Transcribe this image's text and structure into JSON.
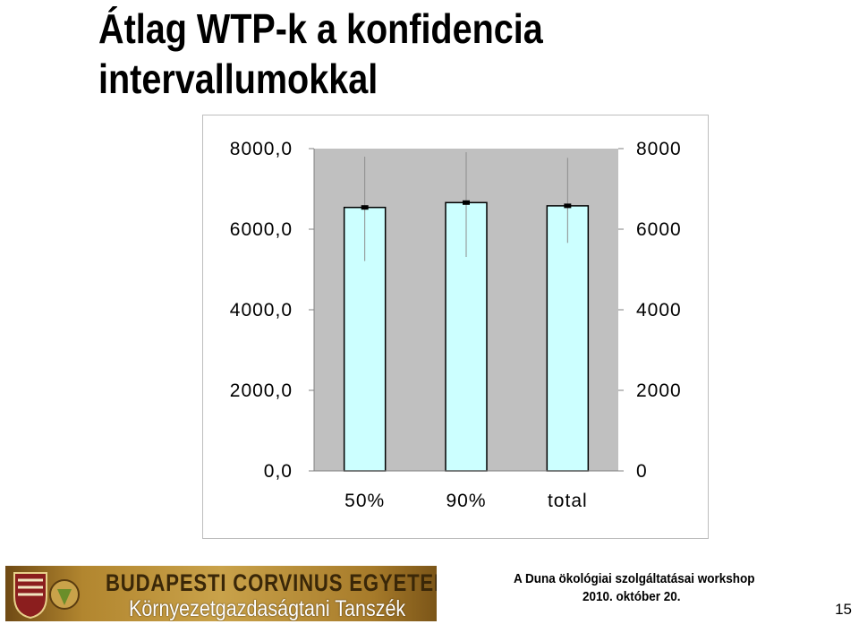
{
  "slide": {
    "title": "Átlag WTP-k a konfidencia intervallumokkal",
    "page_number": "15"
  },
  "footer": {
    "university": "BUDAPESTI CORVINUS EGYETEM",
    "department": "Környezetgazdaságtani Tanszék",
    "workshop": "A Duna ökológiai szolgáltatásai workshop",
    "date": "2010. október 20."
  },
  "colors": {
    "bar_fill": "#ccffff",
    "bar_stroke": "#000000",
    "plot_background": "#c0c0c0",
    "banner_gold": "#b2862f"
  },
  "chart_data": {
    "type": "bar",
    "categories": [
      "50%",
      "90%",
      "total"
    ],
    "values": [
      6540,
      6660,
      6580
    ],
    "error_low": [
      5210,
      5310,
      5660
    ],
    "error_high": [
      7800,
      7910,
      7770
    ],
    "ylim": [
      0,
      8000
    ],
    "left_ticks": [
      "8000,0",
      "6000,0",
      "4000,0",
      "2000,0",
      "0,0"
    ],
    "right_ticks": [
      "8000",
      "6000",
      "4000",
      "2000",
      "0"
    ],
    "tick_values": [
      8000,
      6000,
      4000,
      2000,
      0
    ],
    "grid": false,
    "title": "",
    "xlabel": "",
    "ylabel": ""
  }
}
